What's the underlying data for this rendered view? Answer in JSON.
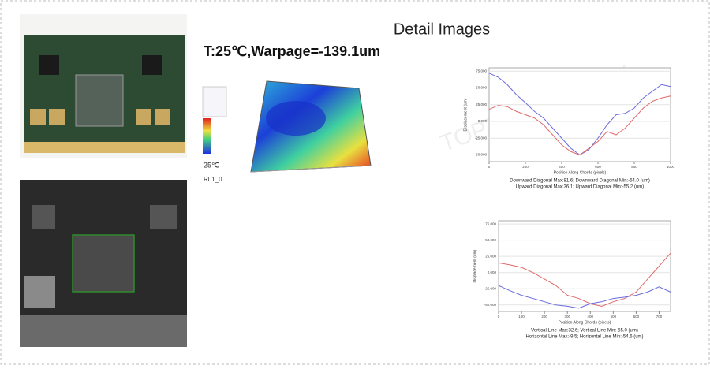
{
  "header": {
    "title": "Detail Images",
    "subtitle": "T:25℃,Warpage=-139.1um"
  },
  "watermark": "TOPTICS 领先光学",
  "surface_plot": {
    "temperature": "25℃",
    "roi": "R01_0"
  },
  "charts": [
    {
      "type": "line",
      "xlabel": "Position Along Chords (pixels)",
      "ylabel": "Displacement (um)",
      "caption": [
        "Downward Diagonal Max:81.6; Downward Diagonal Min:-54.0 (um)",
        "Upward Diagonal Max:36.1; Upward Diagonal Min:-55.2 (um)"
      ],
      "x": [
        0,
        50,
        100,
        150,
        200,
        250,
        300,
        350,
        400,
        450,
        500,
        550,
        600,
        650,
        700,
        750,
        800,
        850,
        900,
        950,
        1000
      ],
      "series": [
        {
          "color": "#6a6ae0",
          "values": [
            72,
            66,
            55,
            40,
            28,
            15,
            5,
            -10,
            -25,
            -40,
            -50,
            -42,
            -25,
            -5,
            10,
            12,
            20,
            35,
            45,
            55,
            52
          ]
        },
        {
          "color": "#e06a6a",
          "values": [
            18,
            24,
            22,
            15,
            10,
            5,
            -5,
            -20,
            -35,
            -45,
            -50,
            -40,
            -30,
            -15,
            -20,
            -10,
            5,
            20,
            30,
            35,
            38
          ]
        }
      ],
      "xlim": [
        0,
        1000
      ],
      "ylim": [
        -60,
        80
      ],
      "xticks": [
        0,
        200,
        400,
        600,
        800,
        1000
      ],
      "yticks": [
        {
          "value": 75,
          "label": "75.000"
        },
        {
          "value": 50,
          "label": "50.000"
        },
        {
          "value": 25,
          "label": "25.000"
        },
        {
          "value": 0,
          "label": "0.000"
        },
        {
          "value": -25,
          "label": "-25.000"
        },
        {
          "value": -50,
          "label": "-50.000"
        }
      ]
    },
    {
      "type": "line",
      "xlabel": "Position Along Chords (pixels)",
      "ylabel": "Displacement (um)",
      "caption": [
        "Vertical Line Max:32.6; Vertical Line Min:-55.0 (um)",
        "Horizontal Line Max:-9.5; Horizontal Line Min:-54.6 (um)"
      ],
      "x": [
        0,
        50,
        100,
        150,
        200,
        250,
        300,
        350,
        400,
        450,
        500,
        550,
        600,
        650,
        700,
        750
      ],
      "series": [
        {
          "color": "#e06a6a",
          "values": [
            15,
            12,
            8,
            0,
            -10,
            -20,
            -35,
            -40,
            -48,
            -52,
            -45,
            -40,
            -30,
            -10,
            10,
            30
          ]
        },
        {
          "color": "#6a6ae0",
          "values": [
            -20,
            -28,
            -35,
            -40,
            -45,
            -50,
            -52,
            -55,
            -48,
            -45,
            -40,
            -38,
            -35,
            -30,
            -22,
            -30
          ]
        }
      ],
      "xlim": [
        0,
        750
      ],
      "ylim": [
        -60,
        80
      ],
      "xticks": [
        0,
        100,
        200,
        300,
        400,
        500,
        600,
        700
      ],
      "yticks": [
        {
          "value": 75,
          "label": "75.000"
        },
        {
          "value": 50,
          "label": "50.000"
        },
        {
          "value": 25,
          "label": "25.000"
        },
        {
          "value": 0,
          "label": "0.000"
        },
        {
          "value": -25,
          "label": "-25.000"
        },
        {
          "value": -50,
          "label": "-50.000"
        }
      ]
    }
  ]
}
